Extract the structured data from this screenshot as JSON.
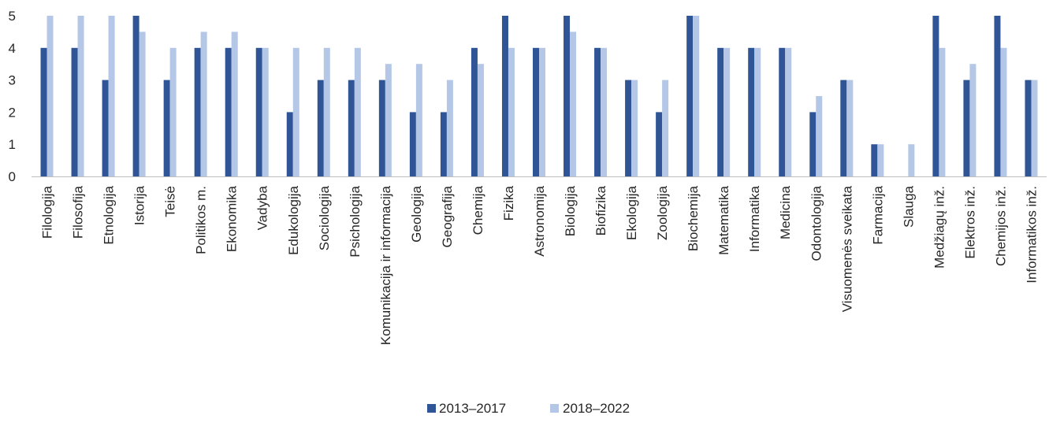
{
  "chart_data": {
    "type": "bar",
    "title": "",
    "xlabel": "",
    "ylabel": "",
    "ylim": [
      0,
      5
    ],
    "yticks": [
      0,
      1,
      2,
      3,
      4,
      5
    ],
    "grid": false,
    "legend_position": "bottom",
    "categories": [
      "Filologija",
      "Filosofija",
      "Etnologija",
      "Istorija",
      "Teisė",
      "Politikos m.",
      "Ekonomika",
      "Vadyba",
      "Edukologija",
      "Sociologija",
      "Psichologija",
      "Komunikacija ir informacija",
      "Geologija",
      "Geografija",
      "Chemija",
      "Fizika",
      "Astronomija",
      "Biologija",
      "Biofizika",
      "Ekologija",
      "Zoologija",
      "Biochemija",
      "Matematika",
      "Informatika",
      "Medicina",
      "Odontologija",
      "Visuomenės sveikata",
      "Farmacija",
      "Slauga",
      "Medžiagų inž.",
      "Elektros inž.",
      "Chemijos inž.",
      "Informatikos inž."
    ],
    "series": [
      {
        "name": "2013–2017",
        "color": "#2F5597",
        "values": [
          4,
          4,
          3,
          5,
          3,
          4,
          4,
          4,
          2,
          3,
          3,
          3,
          2,
          2,
          4,
          5,
          4,
          5,
          4,
          3,
          2,
          5,
          4,
          4,
          4,
          2,
          3,
          1,
          0,
          5,
          3,
          5,
          3
        ]
      },
      {
        "name": "2018–2022",
        "color": "#B4C7E7",
        "values": [
          5,
          5,
          5,
          4.5,
          4,
          4.5,
          4.5,
          4,
          4,
          4,
          4,
          3.5,
          3.5,
          3,
          3.5,
          4,
          4,
          4.5,
          4,
          3,
          3,
          5,
          4,
          4,
          4,
          2.5,
          3,
          1,
          1,
          4,
          3.5,
          4,
          3
        ]
      }
    ]
  }
}
